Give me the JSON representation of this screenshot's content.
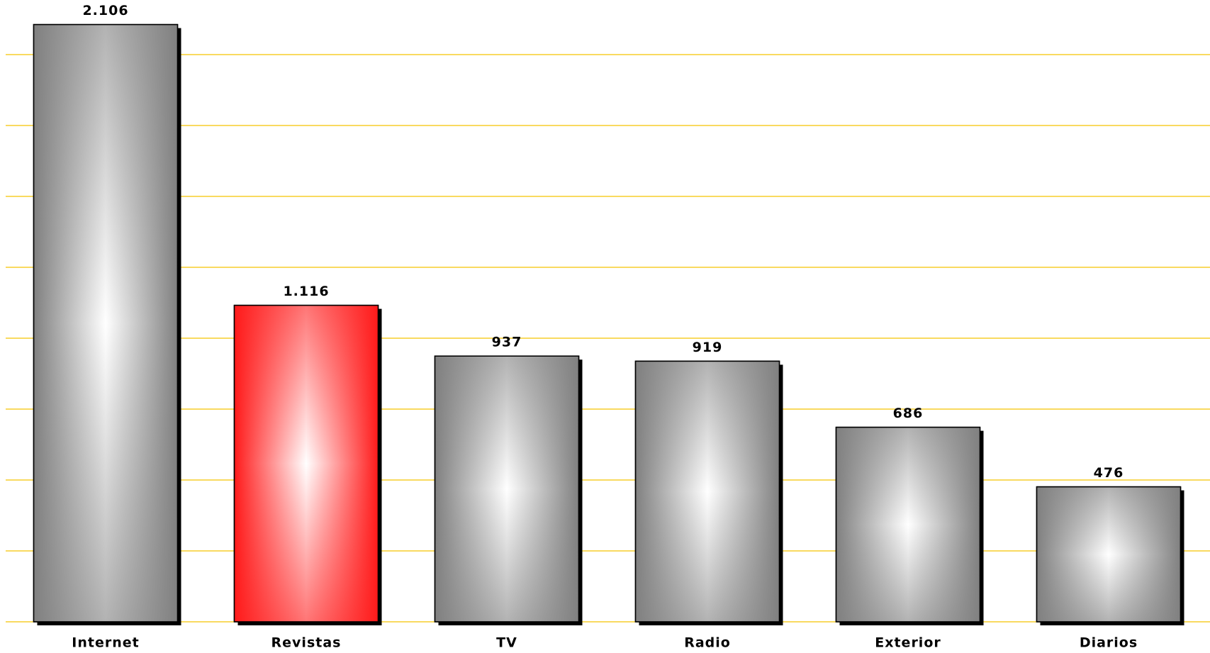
{
  "chart_data": {
    "type": "bar",
    "categories": [
      "Internet",
      "Revistas",
      "TV",
      "Radio",
      "Exterior",
      "Diarios"
    ],
    "values": [
      2106,
      1116,
      937,
      919,
      686,
      476
    ],
    "value_labels": [
      "2.106",
      "1.116",
      "937",
      "919",
      "686",
      "476"
    ],
    "colors": [
      "#808080",
      "#ff1a1a",
      "#808080",
      "#808080",
      "#808080",
      "#808080"
    ],
    "ylim": [
      0,
      2250
    ],
    "yticks": [
      0,
      250,
      500,
      750,
      1000,
      1250,
      1500,
      1750,
      2000
    ],
    "grid": true,
    "grid_color": "#f5c400"
  }
}
